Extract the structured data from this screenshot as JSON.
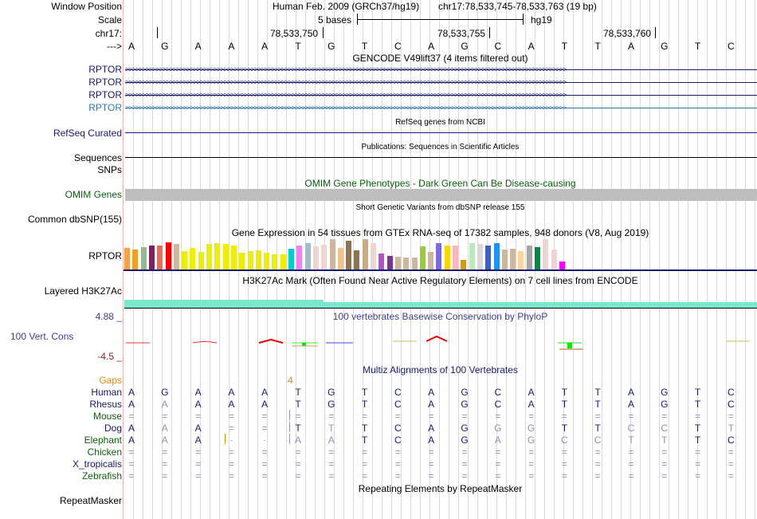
{
  "header": {
    "window_position_label": "Window Position",
    "scale_label": "Scale",
    "chrom_label": "chr17:",
    "strand_label": "--->",
    "assembly_text": "Human Feb. 2009 (GRCh37/hg19)",
    "position_text": "chr17:78,533,745-78,533,763 (19 bp)",
    "scale_text": "5 bases",
    "scale_db": "hg19",
    "ticks": [
      "78,533,750",
      "78,533,755",
      "78,533,760"
    ]
  },
  "sequence": [
    "A",
    "G",
    "A",
    "A",
    "A",
    "T",
    "G",
    "T",
    "C",
    "A",
    "G",
    "C",
    "A",
    "T",
    "T",
    "A",
    "G",
    "T",
    "C"
  ],
  "tracks": {
    "gencode": {
      "title": "GENCODE V49lift37 (4 items filtered out)",
      "items": [
        {
          "label": "RPTOR",
          "color": "#191970"
        },
        {
          "label": "RPTOR",
          "color": "#191970"
        },
        {
          "label": "RPTOR",
          "color": "#191970"
        },
        {
          "label": "RPTOR",
          "color": "#2b7bb0"
        }
      ]
    },
    "refseq": {
      "label": "RefSeq Curated",
      "title": "RefSeq genes from NCBI"
    },
    "publications": {
      "label": "Sequences",
      "title": "Publications: Sequences in Scientific Articles"
    },
    "snps": {
      "label": "SNPs"
    },
    "omim": {
      "label": "OMIM Genes",
      "title": "OMIM Gene Phenotypes - Dark Green Can Be Disease-causing"
    },
    "dbsnp": {
      "label": "Common dbSNP(155)",
      "title": "Short Genetic Variants from dbSNP release 155"
    },
    "gtex": {
      "label": "RPTOR",
      "title": "Gene Expression in 54 tissues from GTEx RNA-seq of 17382 samples, 948 donors (V8, Aug 2019)",
      "bars": [
        {
          "v": 0.72,
          "c": "#f5a04a"
        },
        {
          "v": 0.66,
          "c": "#f0a01e"
        },
        {
          "v": 0.74,
          "c": "#8fbc8f"
        },
        {
          "v": 0.8,
          "c": "#8b1c62"
        },
        {
          "v": 0.8,
          "c": "#ee6a50"
        },
        {
          "v": 0.9,
          "c": "#ff0000"
        },
        {
          "v": 0.85,
          "c": "#cdb79e"
        },
        {
          "v": 0.6,
          "c": "#eeee00"
        },
        {
          "v": 0.7,
          "c": "#eeee00"
        },
        {
          "v": 0.58,
          "c": "#eeee00"
        },
        {
          "v": 0.85,
          "c": "#eeee00"
        },
        {
          "v": 0.88,
          "c": "#eeee00"
        },
        {
          "v": 0.83,
          "c": "#eeee00"
        },
        {
          "v": 0.8,
          "c": "#eeee00"
        },
        {
          "v": 0.55,
          "c": "#eeee00"
        },
        {
          "v": 0.6,
          "c": "#eeee00"
        },
        {
          "v": 0.62,
          "c": "#eeee00"
        },
        {
          "v": 0.55,
          "c": "#eeee00"
        },
        {
          "v": 0.5,
          "c": "#eeee00"
        },
        {
          "v": 0.5,
          "c": "#eeee00"
        },
        {
          "v": 0.68,
          "c": "#00cdcd"
        },
        {
          "v": 0.8,
          "c": "#ee82ee"
        },
        {
          "v": 0.88,
          "c": "#9ac0cd"
        },
        {
          "v": 0.77,
          "c": "#eed5d2"
        },
        {
          "v": 0.82,
          "c": "#eed5d2"
        },
        {
          "v": 1.0,
          "c": "#cdb79e"
        },
        {
          "v": 0.7,
          "c": "#eec591"
        },
        {
          "v": 0.96,
          "c": "#8b7355"
        },
        {
          "v": 0.62,
          "c": "#8b7355"
        },
        {
          "v": 1.0,
          "c": "#cdaa7d"
        },
        {
          "v": 0.86,
          "c": "#eed5d2"
        },
        {
          "v": 0.52,
          "c": "#b452cd"
        },
        {
          "v": 0.45,
          "c": "#7a378b"
        },
        {
          "v": 0.42,
          "c": "#cdb79e"
        },
        {
          "v": 0.4,
          "c": "#cdb79e"
        },
        {
          "v": 0.4,
          "c": "#cdb79e"
        },
        {
          "v": 0.77,
          "c": "#9acd32"
        },
        {
          "v": 0.58,
          "c": "#cdb79e"
        },
        {
          "v": 0.86,
          "c": "#7b68ee"
        },
        {
          "v": 0.8,
          "c": "#ffd700"
        },
        {
          "v": 0.8,
          "c": "#ffb6c1"
        },
        {
          "v": 0.31,
          "c": "#cd9b1d"
        },
        {
          "v": 0.86,
          "c": "#b4eeb4"
        },
        {
          "v": 0.84,
          "c": "#d9d9d9"
        },
        {
          "v": 0.8,
          "c": "#3a5fcd"
        },
        {
          "v": 0.86,
          "c": "#1e90ff"
        },
        {
          "v": 0.67,
          "c": "#cdb79e"
        },
        {
          "v": 0.69,
          "c": "#cdb79e"
        },
        {
          "v": 0.6,
          "c": "#ffd39b"
        },
        {
          "v": 0.78,
          "c": "#a6a6a6"
        },
        {
          "v": 0.73,
          "c": "#008b45"
        },
        {
          "v": 1.0,
          "c": "#eed5d2"
        },
        {
          "v": 0.66,
          "c": "#eed5d2"
        },
        {
          "v": 0.26,
          "c": "#ff00ff"
        }
      ]
    },
    "h3k27ac": {
      "label": "Layered H3K27Ac",
      "title": "H3K27Ac Mark (Often Found Near Active Regulatory Elements) on 7 cell lines from ENCODE"
    },
    "phylop": {
      "label": "100 Vert. Cons",
      "title": "100 vertebrates Basewise Conservation by PhyloP",
      "max_label": "4.88 _",
      "min_label": "-4.5 _"
    },
    "multiz": {
      "title": "Multiz Alignments of 100 Vertebrates",
      "gaps_label": "Gaps",
      "gap_count": "4",
      "species": [
        {
          "name": "Human",
          "color": "#191970",
          "row": [
            "A",
            "G",
            "A",
            "A",
            "A",
            "T",
            "G",
            "T",
            "C",
            "A",
            "G",
            "C",
            "A",
            "T",
            "T",
            "A",
            "G",
            "T",
            "C"
          ]
        },
        {
          "name": "Rhesus",
          "color": "#191970",
          "row": [
            "A",
            "a",
            "A",
            "A",
            "A",
            "T",
            "G",
            "T",
            "C",
            "A",
            "G",
            "C",
            "A",
            "T",
            "T",
            "A",
            "G",
            "T",
            "C"
          ]
        },
        {
          "name": "Mouse",
          "color": "#0b610b",
          "row": [
            "=",
            "=",
            "=",
            "=",
            "=",
            "=",
            "=",
            "=",
            "=",
            "=",
            "=",
            "=",
            "=",
            "=",
            "=",
            "=",
            "=",
            "=",
            "="
          ]
        },
        {
          "name": "Dog",
          "color": "#191970",
          "row": [
            "A",
            "a",
            "A",
            "=",
            "=",
            "T",
            "t",
            "T",
            "C",
            "A",
            "G",
            "g",
            "g",
            "T",
            "T",
            "c",
            "c",
            "T",
            "t"
          ]
        },
        {
          "name": "Elephant",
          "color": "#0b610b",
          "row": [
            "A",
            "a",
            "A",
            "-",
            "-",
            "a",
            "a",
            "T",
            "C",
            "A",
            "G",
            "a",
            "g",
            "c",
            "c",
            "t",
            "t",
            "T",
            "C"
          ]
        },
        {
          "name": "Chicken",
          "color": "#0b610b",
          "row": [
            "=",
            "=",
            "=",
            "=",
            "=",
            "=",
            "=",
            "=",
            "=",
            "=",
            "=",
            "=",
            "=",
            "=",
            "=",
            "=",
            "=",
            "=",
            "="
          ]
        },
        {
          "name": "X_tropicalis",
          "color": "#191970",
          "row": [
            "=",
            "=",
            "=",
            "=",
            "=",
            "=",
            "=",
            "=",
            "=",
            "=",
            "=",
            "=",
            "=",
            "=",
            "=",
            "=",
            "=",
            "=",
            "="
          ]
        },
        {
          "name": "Zebrafish",
          "color": "#0b610b",
          "row": [
            "=",
            "=",
            "=",
            "=",
            "=",
            "=",
            "=",
            "=",
            "=",
            "=",
            "=",
            "=",
            "=",
            "=",
            "=",
            "=",
            "=",
            "=",
            "="
          ]
        }
      ]
    },
    "repeatmasker": {
      "label": "RepeatMasker",
      "title": "Repeating Elements by RepeatMasker"
    }
  }
}
